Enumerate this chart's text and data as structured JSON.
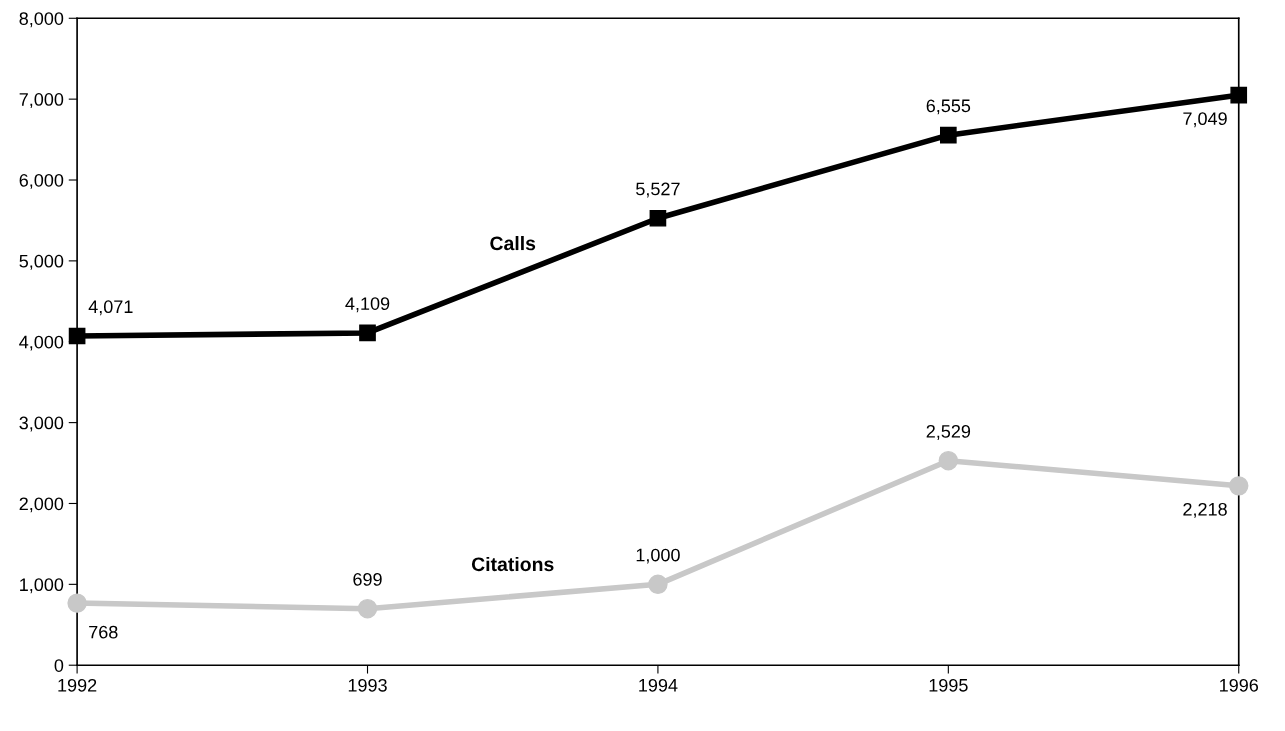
{
  "chart_data": {
    "type": "line",
    "x": [
      1992,
      1993,
      1994,
      1995,
      1996
    ],
    "series": [
      {
        "name": "Calls",
        "color": "#000000",
        "marker": "square",
        "values": [
          4071,
          4109,
          5527,
          6555,
          7049
        ],
        "value_labels": [
          "4,071",
          "4,109",
          "5,527",
          "6,555",
          "7,049"
        ]
      },
      {
        "name": "Citations",
        "color": "#c8c8c8",
        "marker": "circle",
        "values": [
          768,
          699,
          1000,
          2529,
          2218
        ],
        "value_labels": [
          "768",
          "699",
          "1,000",
          "2,529",
          "2,218"
        ]
      }
    ],
    "xlim": [
      1992,
      1996
    ],
    "xticks": [
      1992,
      1993,
      1994,
      1995,
      1996
    ],
    "ylim": [
      0,
      8000
    ],
    "yticks": [
      {
        "value": 0,
        "label": "0"
      },
      {
        "value": 1000,
        "label": "1,000"
      },
      {
        "value": 2000,
        "label": "2,000"
      },
      {
        "value": 3000,
        "label": "3,000"
      },
      {
        "value": 4000,
        "label": "4,000"
      },
      {
        "value": 5000,
        "label": "5,000"
      },
      {
        "value": 6000,
        "label": "6,000"
      },
      {
        "value": 7000,
        "label": "7,000"
      },
      {
        "value": 8000,
        "label": "8,000"
      }
    ],
    "grid": false,
    "line_style": "solid"
  }
}
